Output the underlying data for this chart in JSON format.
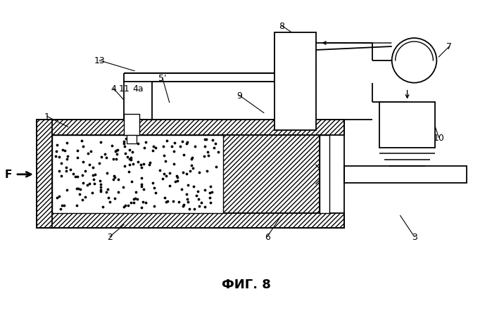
{
  "title": "ФИГ. 8",
  "bg_color": "#ffffff",
  "lw": 1.3
}
